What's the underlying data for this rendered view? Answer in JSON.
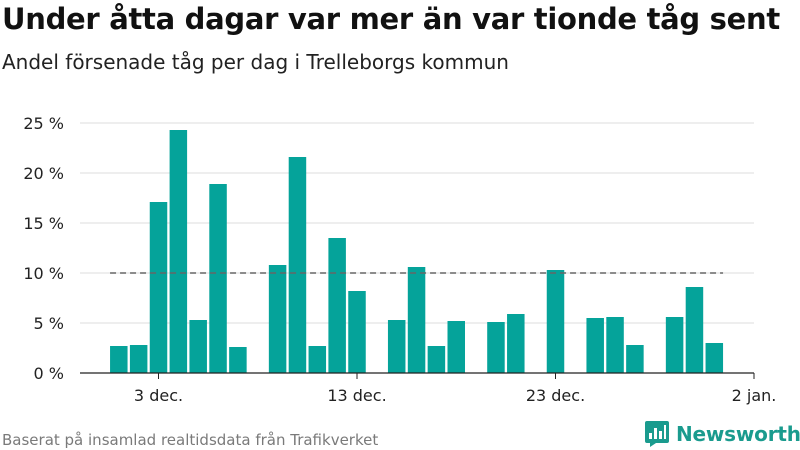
{
  "header": {
    "title": "Under åtta dagar var mer än var tionde tåg sent",
    "subtitle": "Andel försenade tåg per dag i Trelleborgs kommun"
  },
  "footer": {
    "source": "Baserat på insamlad realtidsdata från Trafikverket",
    "brand": "Newsworthy"
  },
  "colors": {
    "bar": "#05a39a",
    "reference_line": "#666666",
    "brand": "#1a9b8e"
  },
  "chart_data": {
    "type": "bar",
    "title": "Under åtta dagar var mer än var tionde tåg sent",
    "subtitle": "Andel försenade tåg per dag i Trelleborgs kommun",
    "xlabel": "",
    "ylabel": "",
    "x_start": "2023-12-03",
    "x_unit": "day",
    "xlim": [
      "2023-11-29",
      "2024-01-02"
    ],
    "x_tick_labels": [
      "3 dec.",
      "13 dec.",
      "23 dec.",
      "2 jan."
    ],
    "x_tick_dates": [
      "2023-12-03",
      "2023-12-13",
      "2023-12-23",
      "2024-01-02"
    ],
    "ylim": [
      0,
      25
    ],
    "y_ticks": [
      0,
      5,
      10,
      15,
      20,
      25
    ],
    "y_tick_labels": [
      "0 %",
      "5 %",
      "10 %",
      "15 %",
      "20 %",
      "25 %"
    ],
    "grid": true,
    "series": [
      {
        "values": [
          {
            "date": "2023-12-01",
            "value": 2.7
          },
          {
            "date": "2023-12-02",
            "value": 2.8
          },
          {
            "date": "2023-12-03",
            "value": 17.1
          },
          {
            "date": "2023-12-04",
            "value": 24.3
          },
          {
            "date": "2023-12-05",
            "value": 5.3
          },
          {
            "date": "2023-12-06",
            "value": 18.9
          },
          {
            "date": "2023-12-07",
            "value": 2.6
          },
          {
            "date": "2023-12-09",
            "value": 10.8
          },
          {
            "date": "2023-12-10",
            "value": 21.6
          },
          {
            "date": "2023-12-11",
            "value": 2.7
          },
          {
            "date": "2023-12-12",
            "value": 13.5
          },
          {
            "date": "2023-12-13",
            "value": 8.2
          },
          {
            "date": "2023-12-15",
            "value": 5.3
          },
          {
            "date": "2023-12-16",
            "value": 10.6
          },
          {
            "date": "2023-12-17",
            "value": 2.7
          },
          {
            "date": "2023-12-18",
            "value": 5.2
          },
          {
            "date": "2023-12-20",
            "value": 5.1
          },
          {
            "date": "2023-12-21",
            "value": 5.9
          },
          {
            "date": "2023-12-23",
            "value": 10.3
          },
          {
            "date": "2023-12-25",
            "value": 5.5
          },
          {
            "date": "2023-12-26",
            "value": 5.6
          },
          {
            "date": "2023-12-27",
            "value": 2.8
          },
          {
            "date": "2023-12-29",
            "value": 5.6
          },
          {
            "date": "2023-12-30",
            "value": 8.6
          },
          {
            "date": "2023-12-31",
            "value": 3.0
          }
        ]
      }
    ],
    "reference_line": {
      "value": 10,
      "style": "dashed",
      "from": "2023-12-01",
      "to": "2023-12-31"
    }
  }
}
